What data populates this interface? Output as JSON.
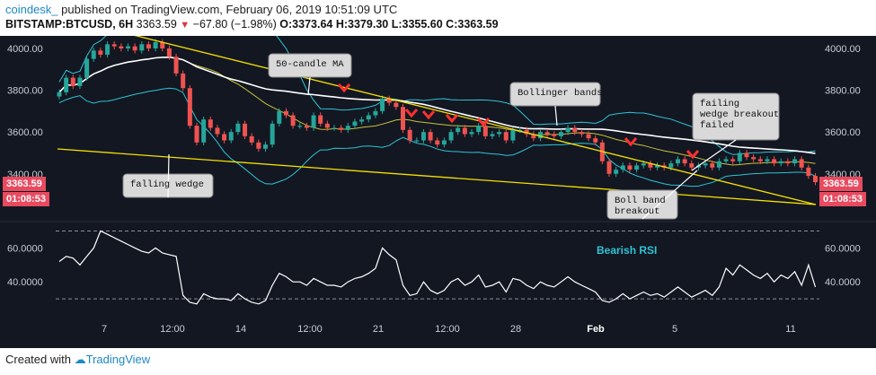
{
  "header": {
    "brand": "coindesk_",
    "published": "published on TradingView.com, February 06, 2019 10:51:09 UTC",
    "symbol": "BITSTAMP:BTCUSD, 6H",
    "price": "3363.59",
    "change": "−67.80 (−1.98%)",
    "ohlc_o": "O:3373.64",
    "ohlc_h": "H:3379.30",
    "ohlc_l": "L:3355.60",
    "ohlc_c": "C:3363.59"
  },
  "footer": {
    "created_with": "Created with",
    "brand": "TradingView"
  },
  "price_tag": {
    "price": "3363.59",
    "countdown": "01:08:53"
  },
  "colors": {
    "bg": "#131722",
    "up": "#26a69a",
    "down": "#ef5350",
    "wedge": "#f5e000",
    "bollinger": "#2ec4d6",
    "ma50": "#ffffff",
    "rsi": "#ffffff"
  },
  "annotations": {
    "ma50": "50-candle MA",
    "falling_wedge": "falling wedge",
    "bollinger": "Bollinger bands",
    "failing_breakout": [
      "failing",
      "wedge breakout",
      "failed"
    ],
    "boll_breakout": [
      "Boll band",
      "breakout"
    ],
    "bearish_rsi": "Bearish RSI"
  },
  "chart_data": [
    {
      "type": "line",
      "title": "BITSTAMP:BTCUSD, 6H",
      "x_ticks": [
        "7",
        "12:00",
        "14",
        "12:00",
        "21",
        "12:00",
        "28",
        "Feb",
        "5",
        "11"
      ],
      "y_ticks": [
        "4000.00",
        "3800.00",
        "3600.00",
        "3400.00"
      ],
      "ylim": [
        3180,
        4060
      ],
      "series": [
        {
          "kind": "close",
          "values": [
            3790,
            3860,
            3820,
            3860,
            3950,
            3990,
            3970,
            4020,
            4010,
            4000,
            4010,
            3990,
            4020,
            4000,
            4030,
            4000,
            3960,
            3880,
            3810,
            3630,
            3550,
            3660,
            3620,
            3590,
            3560,
            3600,
            3640,
            3580,
            3550,
            3520,
            3540,
            3640,
            3700,
            3680,
            3630,
            3630,
            3620,
            3680,
            3640,
            3620,
            3620,
            3610,
            3630,
            3650,
            3660,
            3680,
            3700,
            3760,
            3740,
            3720,
            3610,
            3560,
            3560,
            3600,
            3560,
            3540,
            3560,
            3600,
            3620,
            3590,
            3600,
            3630,
            3580,
            3590,
            3600,
            3560,
            3610,
            3610,
            3590,
            3570,
            3600,
            3590,
            3580,
            3600,
            3620,
            3600,
            3590,
            3570,
            3550,
            3460,
            3400,
            3420,
            3440,
            3420,
            3440,
            3450,
            3430,
            3440,
            3430,
            3450,
            3470,
            3450,
            3430,
            3440,
            3450,
            3430,
            3460,
            3470,
            3460,
            3500,
            3480,
            3470,
            3460,
            3470,
            3450,
            3460,
            3450,
            3470,
            3430,
            3390,
            3360
          ]
        }
      ]
    },
    {
      "type": "line",
      "title": "RSI",
      "ylim": [
        20,
        75
      ],
      "y_ticks": [
        "60.0000",
        "40.0000"
      ],
      "series": [
        {
          "name": "RSI",
          "values": [
            52,
            55,
            54,
            50,
            55,
            60,
            70,
            68,
            66,
            64,
            62,
            60,
            58,
            57,
            60,
            57,
            56,
            55,
            32,
            28,
            27,
            33,
            31,
            30,
            30,
            29,
            33,
            30,
            28,
            27,
            29,
            38,
            45,
            43,
            40,
            40,
            38,
            42,
            40,
            38,
            38,
            37,
            40,
            42,
            43,
            45,
            48,
            60,
            56,
            53,
            38,
            32,
            33,
            40,
            35,
            33,
            35,
            40,
            42,
            38,
            40,
            44,
            37,
            38,
            40,
            34,
            42,
            41,
            38,
            36,
            40,
            38,
            37,
            40,
            43,
            40,
            38,
            36,
            34,
            29,
            28,
            30,
            33,
            30,
            32,
            34,
            32,
            33,
            31,
            34,
            37,
            34,
            31,
            33,
            35,
            32,
            37,
            48,
            44,
            50,
            47,
            44,
            42,
            45,
            40,
            44,
            42,
            46,
            38,
            50,
            37
          ]
        }
      ]
    }
  ]
}
